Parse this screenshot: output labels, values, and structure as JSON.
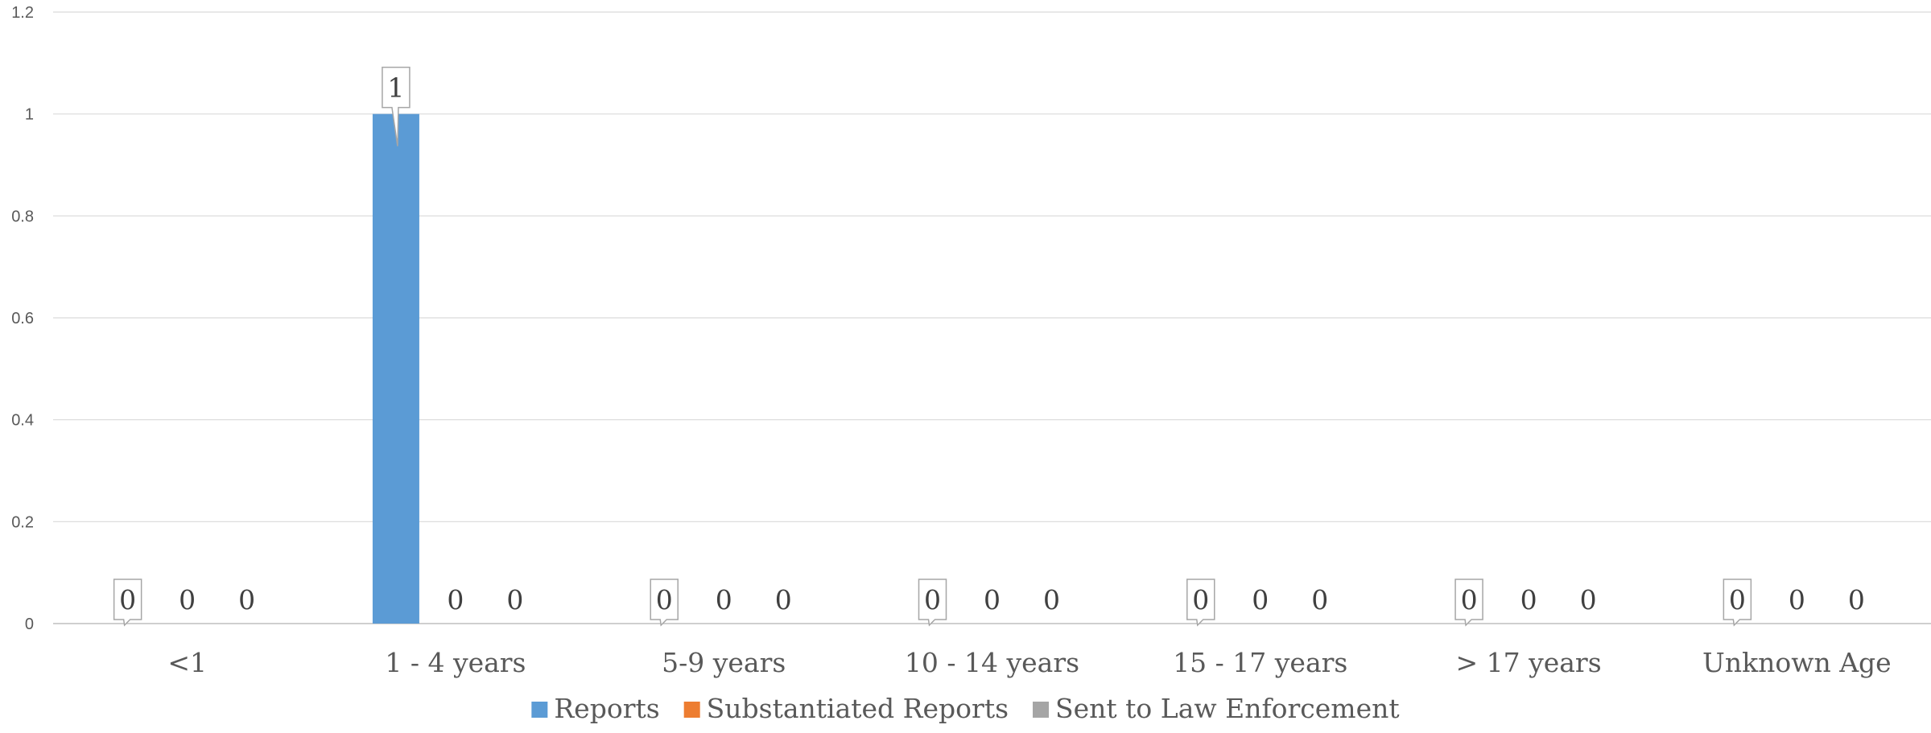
{
  "chart_data": {
    "type": "bar",
    "title": "",
    "xlabel": "",
    "ylabel": "",
    "categories": [
      "<1",
      "1 - 4 years",
      "5-9 years",
      "10 - 14 years",
      "15 - 17 years",
      "> 17 years",
      "Unknown Age"
    ],
    "series": [
      {
        "name": "Reports",
        "values": [
          0,
          1,
          0,
          0,
          0,
          0,
          0
        ],
        "color": "#5B9BD5"
      },
      {
        "name": "Substantiated Reports",
        "values": [
          0,
          0,
          0,
          0,
          0,
          0,
          0
        ],
        "color": "#ED7D31"
      },
      {
        "name": "Sent to Law Enforcement",
        "values": [
          0,
          0,
          0,
          0,
          0,
          0,
          0
        ],
        "color": "#A5A5A5"
      }
    ],
    "yticks": [
      "0",
      "0.2",
      "0.4",
      "0.6",
      "0.8",
      "1",
      "1.2"
    ],
    "ylim": [
      0,
      1.2
    ],
    "grid": true,
    "legend_position": "bottom",
    "data_labels": true
  }
}
